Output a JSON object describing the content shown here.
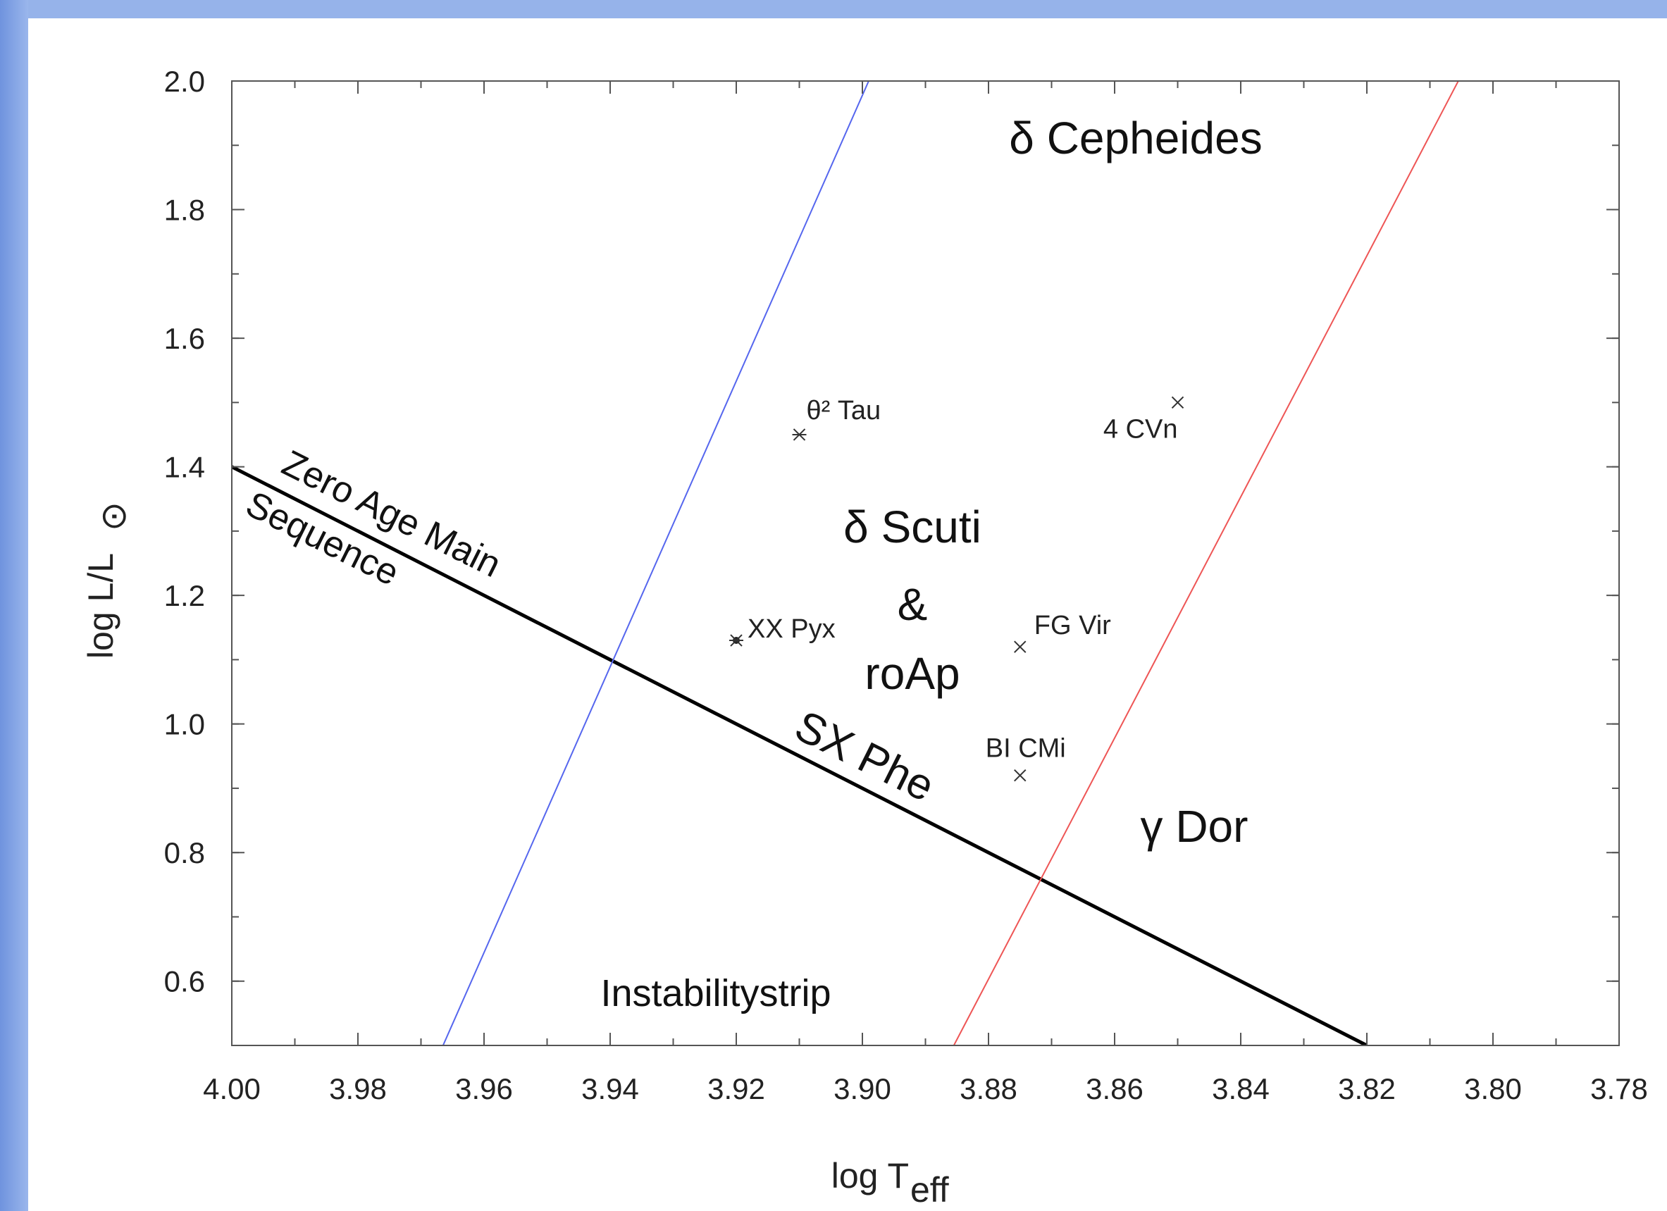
{
  "colors": {
    "frame": "#93b2e8",
    "frame_dark": "#7fa0e0",
    "blue_edge": "#5566ee",
    "red_edge": "#ee5555",
    "zams": "#000000"
  },
  "chart_data": {
    "type": "scatter",
    "title": "",
    "xlabel": "log T",
    "xlabel_sub": "eff",
    "ylabel": "log L/L",
    "ylabel_sub": "⊙",
    "xlim": [
      4.0,
      3.78
    ],
    "ylim": [
      0.5,
      2.0
    ],
    "x_reversed": true,
    "grid": false,
    "x_ticks": [
      "4.00",
      "3.98",
      "3.96",
      "3.94",
      "3.92",
      "3.90",
      "3.88",
      "3.86",
      "3.84",
      "3.82",
      "3.80",
      "3.78"
    ],
    "x_tick_values": [
      4.0,
      3.98,
      3.96,
      3.94,
      3.92,
      3.9,
      3.88,
      3.86,
      3.84,
      3.82,
      3.8,
      3.78
    ],
    "y_ticks": [
      "0.6",
      "0.8",
      "1.0",
      "1.2",
      "1.4",
      "1.6",
      "1.8",
      "2.0"
    ],
    "y_tick_values": [
      0.6,
      0.8,
      1.0,
      1.2,
      1.4,
      1.6,
      1.8,
      2.0
    ],
    "lines": [
      {
        "name": "Zero Age Main Sequence",
        "color": "#000000",
        "points": [
          [
            4.0,
            1.4
          ],
          [
            3.82,
            0.5
          ]
        ]
      },
      {
        "name": "blue edge",
        "color": "#5566ee",
        "points": [
          [
            3.9665,
            0.5
          ],
          [
            3.899,
            2.0
          ]
        ]
      },
      {
        "name": "red edge",
        "color": "#ee5555",
        "points": [
          [
            3.8855,
            0.5
          ],
          [
            3.8055,
            2.0
          ]
        ]
      }
    ],
    "points": [
      {
        "label": "θ² Tau",
        "x": 3.91,
        "y": 1.45,
        "marker": "asterisk"
      },
      {
        "label": "4 CVn",
        "x": 3.85,
        "y": 1.5,
        "marker": "cross"
      },
      {
        "label": "XX Pyx",
        "x": 3.92,
        "y": 1.13,
        "marker": "star"
      },
      {
        "label": "FG Vir",
        "x": 3.875,
        "y": 1.12,
        "marker": "cross"
      },
      {
        "label": "BI CMi",
        "x": 3.875,
        "y": 0.92,
        "marker": "cross"
      }
    ],
    "region_labels": {
      "cepheides": "δ Cepheides",
      "scuti": "δ Scuti",
      "amp": "&",
      "roap": "roAp",
      "sxphe": "SX Phe",
      "gdor": "γ Dor",
      "instability": "Instabilitystrip",
      "zams_1": "Zero Age Main",
      "zams_2": "Sequence"
    }
  }
}
